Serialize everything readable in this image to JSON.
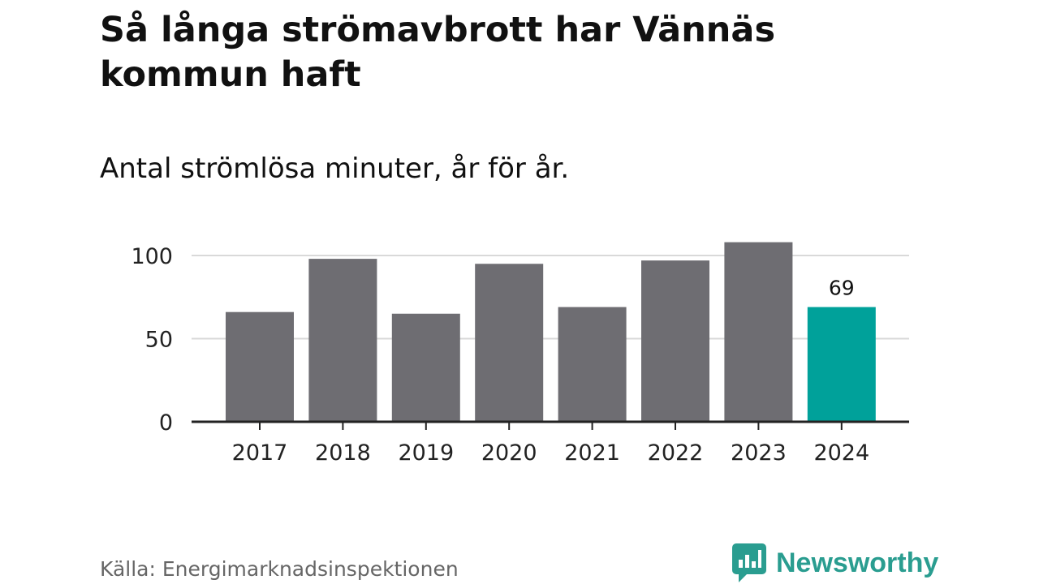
{
  "chart_data": {
    "type": "bar",
    "title": "Så långa strömavbrott har Vännäs kommun haft",
    "subtitle": "Antal strömlösa minuter, år för år.",
    "categories": [
      "2017",
      "2018",
      "2019",
      "2020",
      "2021",
      "2022",
      "2023",
      "2024"
    ],
    "values": [
      66,
      98,
      65,
      95,
      69,
      97,
      108,
      69
    ],
    "data_labels": [
      {
        "category": "2024",
        "text": "69"
      }
    ],
    "highlight_category": "2024",
    "colors": {
      "bar": "#6e6d72",
      "highlight": "#00a19a",
      "grid": "#d9d9d9",
      "axis": "#222222"
    },
    "xlabel": "",
    "ylabel": "",
    "ylim": [
      0,
      110
    ],
    "yticks": [
      0,
      50,
      100
    ],
    "grid": true,
    "legend": "none",
    "source": "Källa: Energimarknadsinspektionen"
  },
  "brand": {
    "name": "Newsworthy",
    "icon": "newsworthy-logo-icon",
    "color": "#2a9d90"
  }
}
